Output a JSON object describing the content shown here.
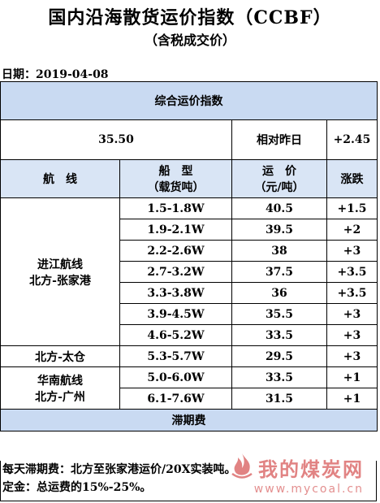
{
  "title": "国内沿海散货运价指数（CCBF）",
  "subtitle": "（含税成交价）",
  "date": "日期：2019-04-08",
  "composite": {
    "header": "综合运价指数",
    "value": "35.50",
    "compare_label": "相对昨日",
    "change": "+2.45"
  },
  "columns": {
    "route": "航　线",
    "ship_line1": "船　型",
    "ship_line2": "（载货吨）",
    "price_line1": "运　价",
    "price_line2": "（元/吨）",
    "change": "涨跌"
  },
  "groups": [
    {
      "route_lines": [
        "进江航线",
        "北方-张家港"
      ],
      "rows": [
        {
          "ship": "1.5-1.8W",
          "price": "40.5",
          "change": "+1.5"
        },
        {
          "ship": "1.9-2.1W",
          "price": "39.5",
          "change": "+2"
        },
        {
          "ship": "2.2-2.6W",
          "price": "38",
          "change": "+3"
        },
        {
          "ship": "2.7-3.2W",
          "price": "37.5",
          "change": "+3.5"
        },
        {
          "ship": "3.3-3.8W",
          "price": "36",
          "change": "+3.5"
        },
        {
          "ship": "3.9-4.5W",
          "price": "35.5",
          "change": "+3"
        },
        {
          "ship": "4.6-5.2W",
          "price": "33.5",
          "change": "+3"
        }
      ]
    },
    {
      "route_lines": [
        "北方-太仓"
      ],
      "rows": [
        {
          "ship": "5.3-5.7W",
          "price": "29.5",
          "change": "+3"
        }
      ]
    },
    {
      "route_lines": [
        "华南航线",
        "北方-广州"
      ],
      "rows": [
        {
          "ship": "5.0-6.0W",
          "price": "33.5",
          "change": "+1"
        },
        {
          "ship": "6.1-7.6W",
          "price": "31.5",
          "change": "+1"
        }
      ]
    }
  ],
  "demurrage": {
    "header": "滞期费",
    "line1": "每天滞期费：北方至张家港运价/20X实装吨。",
    "line2": "定金：总运费的15%-25%。"
  },
  "watermark": {
    "text": "我的煤炭网",
    "url": "www.mycoal.cn",
    "color": "#c81e1e"
  }
}
